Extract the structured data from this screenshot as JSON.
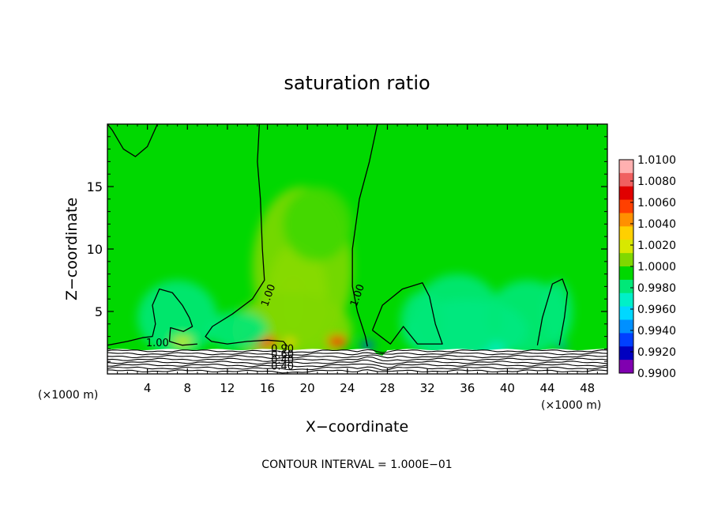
{
  "chart_data": {
    "type": "heatmap",
    "title": "saturation ratio",
    "xlabel": "X−coordinate",
    "ylabel": "Z−coordinate",
    "x_unit_left": "(×1000 m)",
    "x_unit_right": "(×1000 m)",
    "xlim": [
      0,
      50
    ],
    "ylim": [
      0,
      20
    ],
    "x_ticks": [
      4,
      8,
      12,
      16,
      20,
      24,
      28,
      32,
      36,
      40,
      44,
      48
    ],
    "y_ticks": [
      5,
      10,
      15
    ],
    "footer": "CONTOUR INTERVAL = 1.000E−01",
    "colorbar": {
      "levels": [
        "1.0100",
        "1.0080",
        "1.0060",
        "1.0040",
        "1.0020",
        "1.0000",
        "0.9980",
        "0.9960",
        "0.9940",
        "0.9920",
        "0.9900"
      ],
      "colors": [
        "#ffb0b0",
        "#f06060",
        "#e00000",
        "#ff4000",
        "#ff9000",
        "#ffd000",
        "#d8e800",
        "#80d800",
        "#00d800",
        "#00e878",
        "#00f0c8",
        "#00d8ff",
        "#0090ff",
        "#0040ff",
        "#0000c0",
        "#8000b0"
      ]
    },
    "contour_labels": [
      {
        "x": 16.4,
        "z": 6.2,
        "text": "1.00"
      },
      {
        "x": 25.3,
        "z": 6.2,
        "text": "1.00"
      },
      {
        "x": 5.0,
        "z": 2.2,
        "text": "1.00"
      },
      {
        "x": 17.5,
        "z": 1.75,
        "text": "0.90"
      },
      {
        "x": 17.5,
        "z": 1.3,
        "text": "0.60"
      },
      {
        "x": 17.5,
        "z": 0.85,
        "text": "0.40"
      },
      {
        "x": 17.5,
        "z": 0.35,
        "text": "0.40"
      }
    ],
    "blobs": [
      {
        "x": 18.6,
        "z": 5.5,
        "rx": 1.3,
        "rz": 2.2,
        "color": "#ffc000"
      },
      {
        "x": 19.0,
        "z": 6.5,
        "rx": 3.0,
        "rz": 4.0,
        "color": "#d8e800"
      },
      {
        "x": 19.5,
        "z": 8.5,
        "rx": 5.0,
        "rz": 6.5,
        "color": "#80d800"
      },
      {
        "x": 18.5,
        "z": 3.5,
        "rx": 6.0,
        "rz": 3.0,
        "color": "#80d800"
      },
      {
        "x": 21.0,
        "z": 12.0,
        "rx": 3.5,
        "rz": 3.0,
        "color": "#40d800"
      },
      {
        "x": 15.5,
        "z": 2.6,
        "rx": 1.5,
        "rz": 0.5,
        "color": "#ff3000"
      },
      {
        "x": 15.0,
        "z": 2.5,
        "rx": 0.7,
        "rz": 0.3,
        "color": "#e00000"
      },
      {
        "x": 23.0,
        "z": 2.6,
        "rx": 1.0,
        "rz": 0.5,
        "color": "#ff4000"
      },
      {
        "x": 23.0,
        "z": 2.4,
        "rx": 0.5,
        "rz": 0.3,
        "color": "#e00000"
      },
      {
        "x": 18.2,
        "z": 2.5,
        "rx": 0.6,
        "rz": 0.3,
        "color": "#ffd000"
      },
      {
        "x": 36.0,
        "z": 3.5,
        "rx": 6.0,
        "rz": 2.5,
        "color": "#00f0c8"
      },
      {
        "x": 35.0,
        "z": 4.5,
        "rx": 4.5,
        "rz": 3.5,
        "color": "#00e878"
      },
      {
        "x": 42.0,
        "z": 4.5,
        "rx": 4.0,
        "rz": 3.0,
        "color": "#00e878"
      },
      {
        "x": 31.5,
        "z": 4.2,
        "rx": 2.2,
        "rz": 2.4,
        "color": "#00e878"
      },
      {
        "x": 7.0,
        "z": 4.5,
        "rx": 4.0,
        "rz": 3.0,
        "color": "#00e878"
      },
      {
        "x": 13.0,
        "z": 3.5,
        "rx": 3.0,
        "rz": 1.5,
        "color": "#00e878"
      },
      {
        "x": 45.0,
        "z": 5.0,
        "rx": 1.5,
        "rz": 2.5,
        "color": "#00e878"
      },
      {
        "x": 26.0,
        "z": 2.3,
        "rx": 0.7,
        "rz": 0.3,
        "color": "#0040ff"
      },
      {
        "x": 45.5,
        "z": 2.2,
        "rx": 0.5,
        "rz": 0.25,
        "color": "#0090ff"
      },
      {
        "x": 7.5,
        "z": 2.6,
        "rx": 1.0,
        "rz": 0.4,
        "color": "#d8e800"
      }
    ],
    "contours_1_00": [
      [
        [
          0,
          20
        ],
        [
          0.5,
          19.5
        ],
        [
          1.6,
          18.0
        ],
        [
          2.8,
          17.4
        ],
        [
          4.0,
          18.2
        ],
        [
          5.0,
          20
        ]
      ],
      [
        [
          15.2,
          20
        ],
        [
          15.0,
          17
        ],
        [
          15.3,
          14
        ],
        [
          15.5,
          10
        ],
        [
          15.7,
          7.5
        ],
        [
          14.5,
          6.0
        ],
        [
          12.5,
          4.8
        ],
        [
          10.5,
          3.8
        ],
        [
          9.8,
          3.0
        ],
        [
          10.4,
          2.6
        ],
        [
          12.0,
          2.4
        ],
        [
          14.0,
          2.6
        ],
        [
          16.0,
          2.7
        ],
        [
          17.6,
          2.6
        ],
        [
          18.0,
          2.2
        ]
      ],
      [
        [
          27.0,
          20
        ],
        [
          26.2,
          17
        ],
        [
          25.2,
          14
        ],
        [
          24.5,
          10
        ],
        [
          24.5,
          7.0
        ],
        [
          25.0,
          5.0
        ],
        [
          25.8,
          3.0
        ],
        [
          26.0,
          2.2
        ]
      ],
      [
        [
          0,
          2.3
        ],
        [
          2.0,
          2.6
        ],
        [
          3.5,
          2.9
        ],
        [
          4.5,
          3.0
        ],
        [
          4.8,
          4.0
        ],
        [
          4.5,
          5.5
        ],
        [
          5.2,
          6.8
        ],
        [
          6.5,
          6.5
        ],
        [
          7.5,
          5.5
        ],
        [
          8.2,
          4.5
        ],
        [
          8.5,
          3.8
        ],
        [
          7.6,
          3.4
        ],
        [
          6.3,
          3.7
        ],
        [
          6.2,
          2.6
        ],
        [
          7.5,
          2.3
        ],
        [
          9.0,
          2.4
        ]
      ],
      [
        [
          26.5,
          3.5
        ],
        [
          27.5,
          5.5
        ],
        [
          29.5,
          6.8
        ],
        [
          31.5,
          7.3
        ],
        [
          32.2,
          6.2
        ],
        [
          32.8,
          4.0
        ],
        [
          33.5,
          2.4
        ],
        [
          31.0,
          2.4
        ],
        [
          29.6,
          3.8
        ],
        [
          28.3,
          2.4
        ],
        [
          26.5,
          3.5
        ]
      ],
      [
        [
          43.0,
          2.3
        ],
        [
          43.5,
          4.5
        ],
        [
          44.5,
          7.2
        ],
        [
          45.5,
          7.6
        ],
        [
          46.0,
          6.5
        ],
        [
          45.7,
          4.5
        ],
        [
          45.2,
          2.3
        ]
      ]
    ]
  }
}
